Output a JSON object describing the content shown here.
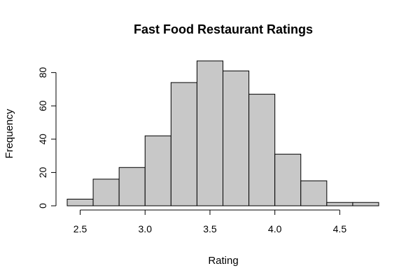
{
  "chart_data": {
    "type": "bar",
    "title": "Fast Food Restaurant Ratings",
    "xlabel": "Rating",
    "ylabel": "Frequency",
    "bins": [
      {
        "x0": 2.4,
        "x1": 2.6,
        "count": 4
      },
      {
        "x0": 2.6,
        "x1": 2.8,
        "count": 16
      },
      {
        "x0": 2.8,
        "x1": 3.0,
        "count": 23
      },
      {
        "x0": 3.0,
        "x1": 3.2,
        "count": 42
      },
      {
        "x0": 3.2,
        "x1": 3.4,
        "count": 74
      },
      {
        "x0": 3.4,
        "x1": 3.6,
        "count": 87
      },
      {
        "x0": 3.6,
        "x1": 3.8,
        "count": 81
      },
      {
        "x0": 3.8,
        "x1": 4.0,
        "count": 67
      },
      {
        "x0": 4.0,
        "x1": 4.2,
        "count": 31
      },
      {
        "x0": 4.2,
        "x1": 4.4,
        "count": 15
      },
      {
        "x0": 4.4,
        "x1": 4.6,
        "count": 2
      },
      {
        "x0": 4.6,
        "x1": 4.8,
        "count": 2
      }
    ],
    "xlim": [
      2.4,
      4.8
    ],
    "ylim": [
      0,
      87
    ],
    "xticks": [
      2.5,
      3.0,
      3.5,
      4.0,
      4.5
    ],
    "xtick_labels": [
      "2.5",
      "3.0",
      "3.5",
      "4.0",
      "4.5"
    ],
    "yticks": [
      0,
      20,
      40,
      60,
      80
    ],
    "ytick_labels": [
      "0",
      "20",
      "40",
      "60",
      "80"
    ],
    "grid": false,
    "legend": "none",
    "colors": {
      "bar_fill": "#c8c8c8",
      "bar_stroke": "#000000"
    }
  }
}
